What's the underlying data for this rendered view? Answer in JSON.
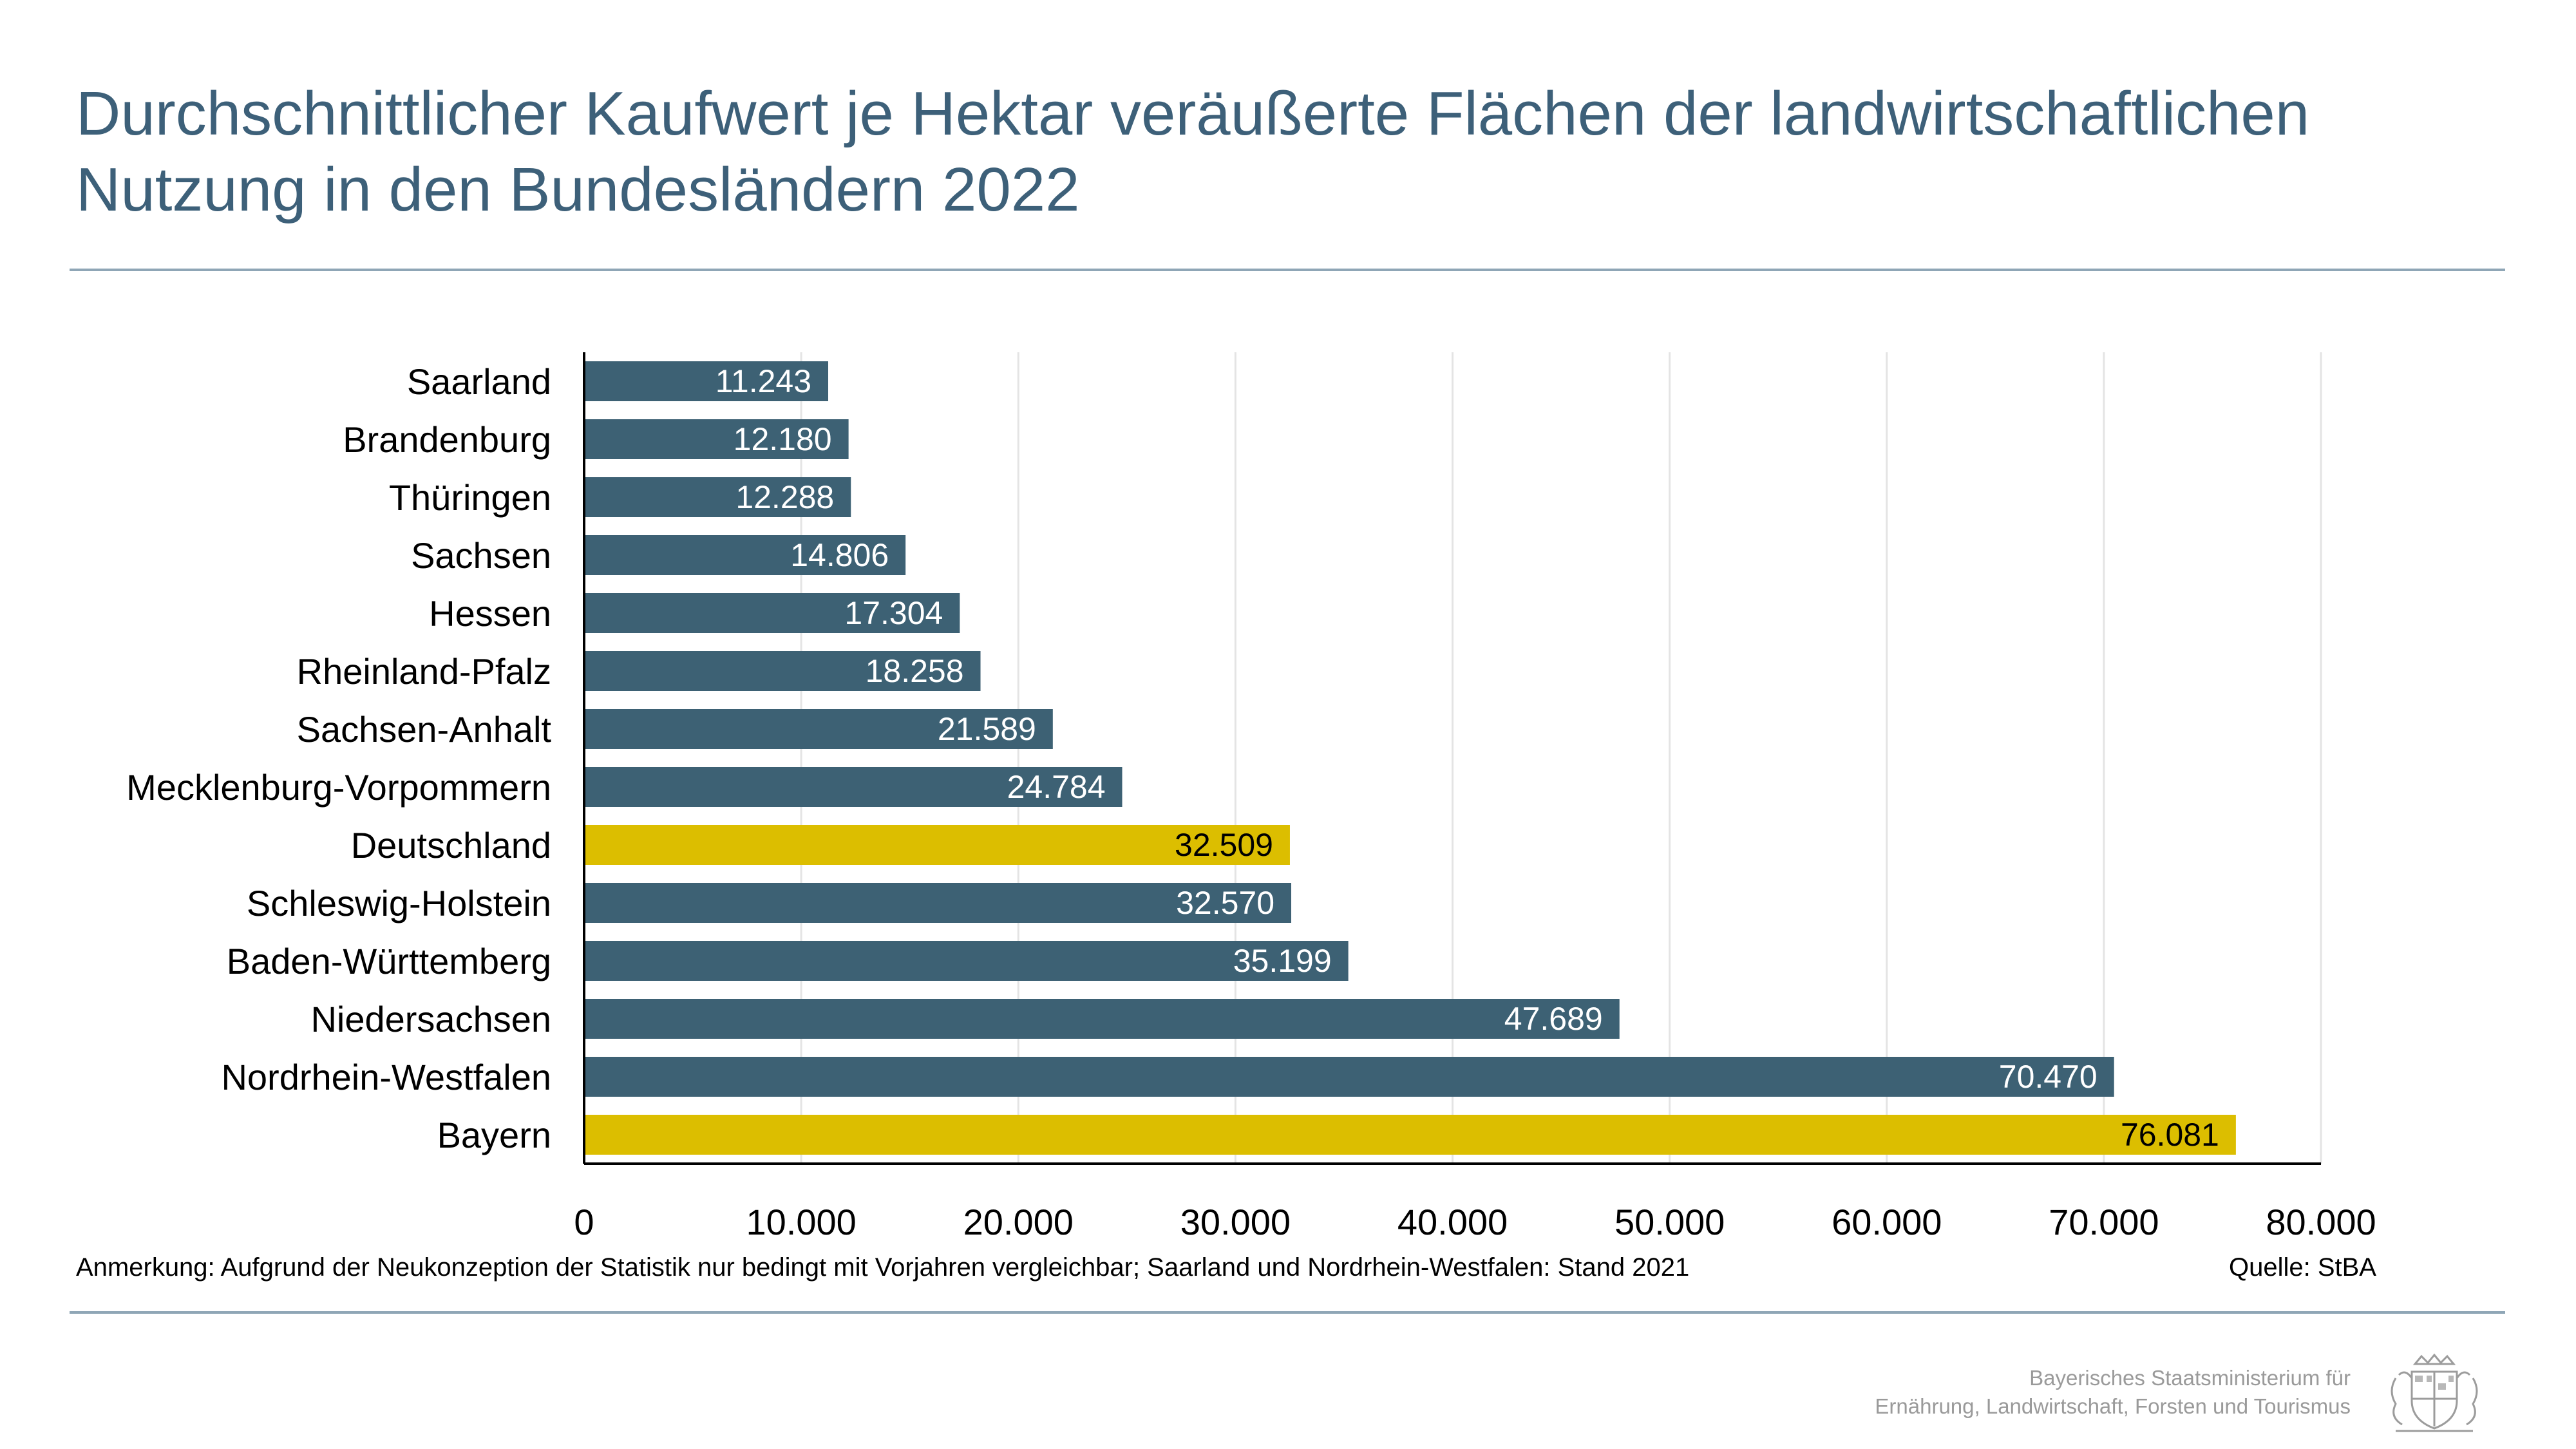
{
  "title": {
    "line1": "Durchschnittlicher Kaufwert je Hektar veräußerte Flächen der landwirtschaftlichen",
    "line2": "Nutzung in den Bundesländern 2022"
  },
  "chart_data": {
    "type": "bar",
    "orientation": "horizontal",
    "categories": [
      "Saarland",
      "Brandenburg",
      "Thüringen",
      "Sachsen",
      "Hessen",
      "Rheinland-Pfalz",
      "Sachsen-Anhalt",
      "Mecklenburg-Vorpommern",
      "Deutschland",
      "Schleswig-Holstein",
      "Baden-Württemberg",
      "Niedersachsen",
      "Nordrhein-Westfalen",
      "Bayern"
    ],
    "values": [
      11243,
      12180,
      12288,
      14806,
      17304,
      18258,
      21589,
      24784,
      32509,
      32570,
      35199,
      47689,
      70470,
      76081
    ],
    "value_labels": [
      "11.243",
      "12.180",
      "12.288",
      "14.806",
      "17.304",
      "18.258",
      "21.589",
      "24.784",
      "32.509",
      "32.570",
      "35.199",
      "47.689",
      "70.470",
      "76.081"
    ],
    "highlighted": [
      "Deutschland",
      "Bayern"
    ],
    "xlim": [
      0,
      80000
    ],
    "xticks": [
      0,
      10000,
      20000,
      30000,
      40000,
      50000,
      60000,
      70000,
      80000
    ],
    "xtick_labels": [
      "0",
      "10.000",
      "20.000",
      "30.000",
      "40.000",
      "50.000",
      "60.000",
      "70.000",
      "80.000"
    ],
    "grid": "vertical",
    "colors": {
      "bar": "#3d6174",
      "highlight": "#dcbe00",
      "grid": "#e4e4e4",
      "axis": "#000000"
    }
  },
  "footer": {
    "note": "Anmerkung: Aufgrund der Neukonzeption der Statistik nur bedingt mit Vorjahren vergleichbar; Saarland und Nordrhein-Westfalen: Stand 2021",
    "source": "Quelle: StBA",
    "ministry_line1": "Bayerisches Staatsministerium für",
    "ministry_line2": "Ernährung, Landwirtschaft, Forsten und Tourismus"
  }
}
